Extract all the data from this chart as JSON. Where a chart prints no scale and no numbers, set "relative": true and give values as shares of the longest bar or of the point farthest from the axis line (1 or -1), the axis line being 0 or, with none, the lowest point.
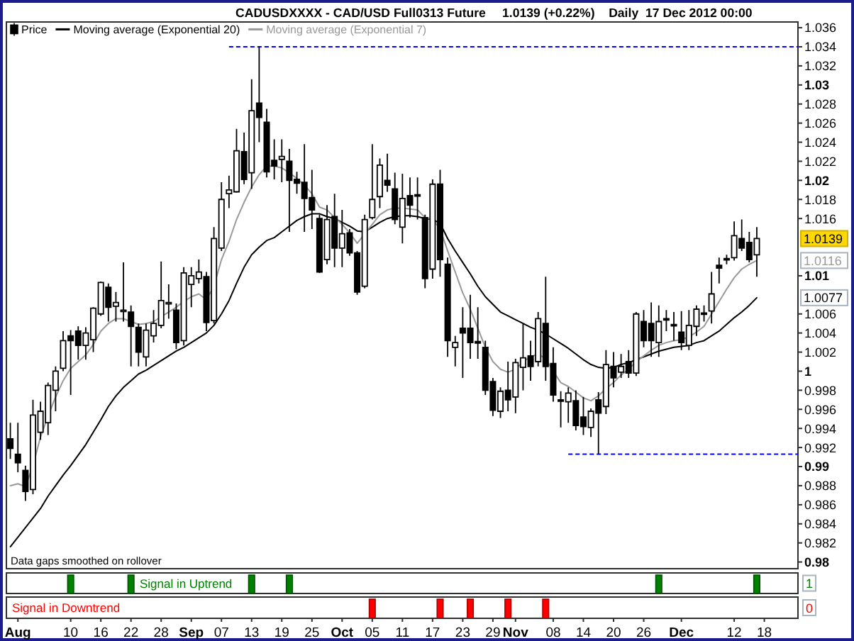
{
  "chart_data": [
    {
      "type": "candlestick",
      "title": "CADUSDXXXX - CAD/USD Full0313 Future",
      "subtitle": "1.0139 (+0.22%)    Daily  17 Dec 2012 00:00",
      "categories": [
        null,
        null,
        null,
        null,
        null,
        null,
        null,
        null,
        null,
        null,
        null,
        null,
        null,
        null,
        null,
        null,
        null,
        null,
        null,
        null,
        null,
        null,
        null,
        null,
        null,
        null,
        null,
        null,
        null,
        null,
        null,
        null,
        null,
        null,
        null,
        null,
        null,
        null,
        null,
        null,
        null,
        null,
        null,
        null,
        null,
        null,
        null,
        null,
        null,
        null,
        null,
        null,
        null,
        null,
        null,
        null,
        null,
        null,
        null,
        null,
        null,
        null,
        null,
        null,
        null,
        null,
        null,
        null,
        null,
        null,
        null,
        null,
        null,
        null,
        null,
        null,
        null,
        null,
        null,
        null,
        null,
        null,
        null,
        null,
        null,
        null,
        null,
        null,
        null,
        null,
        null,
        null,
        null,
        null,
        null,
        null,
        null,
        null,
        null,
        null,
        null
      ],
      "series": [
        {
          "name": "Price",
          "type": "candlestick",
          "color": "#000000",
          "ohlc": [
            [
              0.9929,
              0.9946,
              0.9908,
              0.9919
            ],
            [
              0.9913,
              0.9946,
              0.9894,
              0.9904
            ],
            [
              0.9896,
              0.9901,
              0.9864,
              0.9874
            ],
            [
              0.9876,
              0.997,
              0.9871,
              0.9954
            ],
            [
              0.9936,
              0.9968,
              0.9928,
              0.9958
            ],
            [
              0.9946,
              0.9988,
              0.9933,
              0.9985
            ],
            [
              0.998,
              1.0005,
              0.9958,
              1.0
            ],
            [
              1.0003,
              1.0042,
              1.0,
              1.0032
            ],
            [
              1.0037,
              1.0043,
              0.9975,
              1.0032
            ],
            [
              1.0042,
              1.0047,
              1.0012,
              1.0027
            ],
            [
              1.0027,
              1.0046,
              1.0012,
              1.004
            ],
            [
              1.0033,
              1.0067,
              1.002,
              1.0066
            ],
            [
              1.006,
              1.0094,
              1.0058,
              1.0093
            ],
            [
              1.0088,
              1.0092,
              1.0052,
              1.0067
            ],
            [
              1.0068,
              1.0083,
              1.0052,
              1.0072
            ],
            [
              1.0064,
              1.0114,
              1.0052,
              1.0064
            ],
            [
              1.0062,
              1.0069,
              1.0005,
              1.0047
            ],
            [
              1.0046,
              1.005,
              1.0005,
              1.002
            ],
            [
              1.0015,
              1.005,
              1.0005,
              1.0043
            ],
            [
              1.0037,
              1.0064,
              1.003,
              1.005
            ],
            [
              1.0048,
              1.0115,
              1.0045,
              1.0074
            ],
            [
              1.0071,
              1.0091,
              1.0055,
              1.0072
            ],
            [
              1.0064,
              1.0071,
              1.0023,
              1.003
            ],
            [
              1.0032,
              1.0109,
              1.0027,
              1.0103
            ],
            [
              1.0091,
              1.0109,
              1.0067,
              1.01
            ],
            [
              1.0097,
              1.0117,
              1.0092,
              1.0104
            ],
            [
              1.0099,
              1.0104,
              1.0042,
              1.0051
            ],
            [
              1.0053,
              1.0151,
              1.005,
              1.0139
            ],
            [
              1.0129,
              1.0198,
              1.0126,
              1.018
            ],
            [
              1.0186,
              1.0205,
              1.0171,
              1.019
            ],
            [
              1.0188,
              1.0254,
              1.0187,
              1.0231
            ],
            [
              1.023,
              1.025,
              1.0196,
              1.0201
            ],
            [
              1.0208,
              1.0306,
              1.0191,
              1.0273
            ],
            [
              1.0281,
              1.034,
              1.024,
              1.0266
            ],
            [
              1.0261,
              1.0275,
              1.0203,
              1.0209
            ],
            [
              1.0221,
              1.0243,
              1.0201,
              1.0215
            ],
            [
              1.0222,
              1.0243,
              1.0198,
              1.0225
            ],
            [
              1.022,
              1.0233,
              1.0146,
              1.02
            ],
            [
              1.0201,
              1.0209,
              1.0186,
              1.0197
            ],
            [
              1.0198,
              1.0238,
              1.0146,
              1.0181
            ],
            [
              1.0182,
              1.0211,
              1.0149,
              1.0169
            ],
            [
              1.016,
              1.0164,
              1.0103,
              1.0104
            ],
            [
              1.0117,
              1.0174,
              1.0112,
              1.0159
            ],
            [
              1.0162,
              1.0186,
              1.0109,
              1.0129
            ],
            [
              1.0129,
              1.0169,
              1.0109,
              1.0144
            ],
            [
              1.0145,
              1.0149,
              1.0121,
              1.0124
            ],
            [
              1.0124,
              1.0126,
              1.008,
              1.0083
            ],
            [
              1.0089,
              1.0164,
              1.0087,
              1.0159
            ],
            [
              1.0161,
              1.0238,
              1.0159,
              1.018
            ],
            [
              1.0183,
              1.0223,
              1.0171,
              1.0216
            ],
            [
              1.02,
              1.0228,
              1.0188,
              1.0195
            ],
            [
              1.0191,
              1.0208,
              1.0154,
              1.0159
            ],
            [
              1.0151,
              1.0207,
              1.0134,
              1.0181
            ],
            [
              1.0184,
              1.0203,
              1.0161,
              1.0174
            ],
            [
              1.0185,
              1.0203,
              1.0159,
              1.0184
            ],
            [
              1.0161,
              1.0164,
              1.0087,
              1.0097
            ],
            [
              1.0107,
              1.0201,
              1.0097,
              1.0196
            ],
            [
              1.0196,
              1.0211,
              1.0099,
              1.0117
            ],
            [
              1.0112,
              1.0119,
              1.0015,
              1.0032
            ],
            [
              1.0025,
              1.0037,
              1.0005,
              1.003
            ],
            [
              1.0045,
              1.0067,
              0.9993,
              1.004
            ],
            [
              1.0045,
              1.008,
              1.0013,
              1.003
            ],
            [
              1.0031,
              1.0067,
              1.0013,
              1.003
            ],
            [
              1.0025,
              1.0032,
              0.9975,
              0.998
            ],
            [
              0.9989,
              0.9993,
              0.9953,
              0.9959
            ],
            [
              0.9958,
              0.9983,
              0.9951,
              0.9979
            ],
            [
              0.998,
              1.001,
              0.9958,
              0.997
            ],
            [
              0.9973,
              1.0013,
              0.9956,
              1.0009
            ],
            [
              1.0004,
              1.005,
              0.998,
              1.0014
            ],
            [
              1.0016,
              1.0032,
              0.999,
              1.0005
            ],
            [
              1.001,
              1.0062,
              1.0005,
              1.0055
            ],
            [
              1.005,
              1.0099,
              0.999,
              1.0005
            ],
            [
              1.0008,
              1.0025,
              0.9968,
              0.9975
            ],
            [
              0.997,
              0.9979,
              0.9941,
              0.9969
            ],
            [
              0.9968,
              0.9983,
              0.9946,
              0.9977
            ],
            [
              0.9969,
              0.998,
              0.9938,
              0.9943
            ],
            [
              0.9952,
              0.9973,
              0.9933,
              0.9942
            ],
            [
              0.9941,
              0.9961,
              0.9931,
              0.9958
            ],
            [
              0.997,
              0.9978,
              0.9913,
              0.9956
            ],
            [
              0.9963,
              1.0022,
              0.9955,
              1.0007
            ],
            [
              1.0005,
              1.002,
              0.9983,
              0.9993
            ],
            [
              0.9999,
              1.0018,
              0.9993,
              1.0005
            ],
            [
              1.001,
              1.0022,
              0.9993,
              0.9998
            ],
            [
              0.9998,
              1.0062,
              0.9995,
              1.006
            ],
            [
              1.0052,
              1.0064,
              1.0025,
              1.0032
            ],
            [
              1.005,
              1.0072,
              1.0015,
              1.0032
            ],
            [
              1.003,
              1.0069,
              1.0015,
              1.0052
            ],
            [
              1.0055,
              1.0064,
              1.0042,
              1.0054
            ],
            [
              1.0049,
              1.0062,
              1.0032,
              1.0048
            ],
            [
              1.0041,
              1.0063,
              1.0022,
              1.003
            ],
            [
              1.0027,
              1.0064,
              1.0022,
              1.0048
            ],
            [
              1.0047,
              1.0069,
              1.0037,
              1.0065
            ],
            [
              1.0061,
              1.0069,
              1.0052,
              1.006
            ],
            [
              1.0063,
              1.0104,
              1.005,
              1.0081
            ],
            [
              1.0111,
              1.0119,
              1.0092,
              1.0108
            ],
            [
              1.0118,
              1.0122,
              1.0112,
              1.0117
            ],
            [
              1.0119,
              1.0157,
              1.0116,
              1.0142
            ],
            [
              1.0139,
              1.0159,
              1.0126,
              1.0129
            ],
            [
              1.0135,
              1.0146,
              1.0114,
              1.0117
            ],
            [
              1.0122,
              1.0151,
              1.0099,
              1.0139
            ],
            null
          ]
        },
        {
          "name": "Moving average (Exponential 20)",
          "type": "line",
          "color": "#000000",
          "values": [
            0.9816,
            0.9826,
            0.9836,
            0.9846,
            0.9856,
            0.9869,
            0.988,
            0.9891,
            0.9901,
            0.9912,
            0.9923,
            0.9936,
            0.9949,
            0.9963,
            0.9974,
            0.9983,
            0.999,
            0.9997,
            1.0001,
            1.0006,
            1.0011,
            1.0016,
            1.0021,
            1.0025,
            1.003,
            1.0035,
            1.004,
            1.0048,
            1.006,
            1.0074,
            1.0092,
            1.0109,
            1.0122,
            1.013,
            1.0137,
            1.014,
            1.0146,
            1.0152,
            1.0158,
            1.0162,
            1.0165,
            1.0165,
            1.0162,
            1.016,
            1.0156,
            1.0152,
            1.0147,
            1.0146,
            1.0151,
            1.0156,
            1.016,
            1.0162,
            1.0163,
            1.0163,
            1.0162,
            1.016,
            1.0159,
            1.0155,
            1.0139,
            1.0126,
            1.0114,
            1.0102,
            1.0089,
            1.0078,
            1.007,
            1.0062,
            1.0058,
            1.0054,
            1.005,
            1.0046,
            1.0043,
            1.0039,
            1.0034,
            1.0029,
            1.0024,
            1.0018,
            1.0012,
            1.0007,
            1.0004,
            1.0003,
            1.0004,
            1.0007,
            1.0009,
            1.0012,
            1.0015,
            1.0018,
            1.0021,
            1.0023,
            1.0025,
            1.0026,
            1.0027,
            1.003,
            1.0032,
            1.0037,
            1.0042,
            1.0049,
            1.0056,
            1.0062,
            1.0069,
            1.0077,
            null
          ]
        },
        {
          "name": "Moving average (Exponential 7)",
          "type": "line",
          "color": "#999999",
          "values": [
            0.988,
            0.9882,
            0.9879,
            0.9901,
            0.9931,
            0.9953,
            0.9973,
            0.999,
            1.0003,
            1.001,
            1.0017,
            1.0028,
            1.0042,
            1.005,
            1.0055,
            1.0055,
            1.0052,
            1.0049,
            1.005,
            1.0052,
            1.0057,
            1.0062,
            1.0067,
            1.0073,
            1.0078,
            1.0081,
            1.0075,
            1.0089,
            1.0117,
            1.0136,
            1.0159,
            1.0177,
            1.0193,
            1.0206,
            1.0215,
            1.0215,
            1.0213,
            1.0208,
            1.0202,
            1.0195,
            1.0186,
            1.0172,
            1.0169,
            1.0161,
            1.0154,
            1.0145,
            1.0134,
            1.0144,
            1.0154,
            1.0164,
            1.0169,
            1.0171,
            1.0171,
            1.017,
            1.0169,
            1.0161,
            1.0159,
            1.0149,
            1.0126,
            1.0104,
            1.0082,
            1.0065,
            1.0045,
            1.0025,
            1.001,
            1.0002,
            0.9999,
            1.0002,
            1.001,
            1.0015,
            1.0018,
            1.0013,
            1.0,
            0.9988,
            0.9984,
            0.9978,
            0.9972,
            0.9969,
            0.9974,
            0.9982,
            0.9988,
            0.9996,
            1.0002,
            1.001,
            1.0016,
            1.0022,
            1.0027,
            1.003,
            1.0032,
            1.0033,
            1.0036,
            1.0041,
            1.0047,
            1.006,
            1.0073,
            1.0086,
            1.0098,
            1.0107,
            1.0112,
            1.0116,
            null
          ]
        }
      ],
      "ylim": [
        0.9793,
        1.0366
      ],
      "yticks": [
        0.98,
        0.982,
        0.984,
        0.986,
        0.988,
        0.99,
        0.992,
        0.994,
        0.996,
        0.998,
        1,
        1.002,
        1.004,
        1.006,
        1.0077,
        1.01,
        1.0116,
        1.0139,
        1.016,
        1.018,
        1.02,
        1.022,
        1.024,
        1.026,
        1.028,
        1.03,
        1.032,
        1.034,
        1.036
      ],
      "ref_lines": [
        {
          "axis": "y",
          "value": 1.034,
          "color": "#0000ff",
          "line_style": "dashed"
        },
        {
          "axis": "y",
          "value": 0.9913,
          "color": "#0000ff",
          "line_style": "dashed"
        }
      ],
      "annotations": [
        "Data gaps smoothed on rollover"
      ],
      "legend": "top left"
    },
    {
      "type": "bar",
      "relative": true,
      "categories": [
        null,
        null,
        null,
        null,
        null,
        null,
        null,
        null,
        null,
        null,
        null,
        null,
        null,
        null,
        null,
        null,
        null,
        null,
        null,
        null,
        null,
        null,
        null,
        null,
        null,
        null,
        null,
        null,
        null,
        null,
        null,
        null,
        null,
        null,
        null,
        null,
        null,
        null,
        null,
        null,
        null,
        null,
        null,
        null,
        null,
        null,
        null,
        null,
        null,
        null,
        null,
        null,
        null,
        null,
        null,
        null,
        null,
        null,
        null,
        null,
        null,
        null,
        null,
        null,
        null,
        null,
        null,
        null,
        null,
        null,
        null,
        null,
        null,
        null,
        null,
        null,
        null,
        null,
        null,
        null,
        null,
        null,
        null,
        null,
        null,
        null,
        null,
        null,
        null,
        null,
        null,
        null,
        null,
        null,
        null,
        null,
        null,
        null,
        null,
        null,
        null
      ],
      "series": [
        {
          "name": "Signal in Uptrend",
          "color": "#008000",
          "values": [
            null,
            null,
            null,
            null,
            null,
            null,
            null,
            null,
            1,
            null,
            null,
            null,
            null,
            null,
            null,
            null,
            1,
            null,
            null,
            null,
            null,
            null,
            null,
            null,
            null,
            null,
            null,
            null,
            null,
            null,
            null,
            null,
            1,
            null,
            null,
            null,
            null,
            1,
            null,
            null,
            null,
            null,
            null,
            null,
            null,
            null,
            null,
            null,
            null,
            null,
            null,
            null,
            null,
            null,
            null,
            null,
            null,
            null,
            null,
            null,
            null,
            null,
            null,
            null,
            null,
            null,
            null,
            null,
            null,
            null,
            null,
            null,
            null,
            null,
            null,
            null,
            null,
            null,
            null,
            null,
            null,
            null,
            null,
            null,
            null,
            null,
            1,
            null,
            null,
            null,
            null,
            null,
            null,
            null,
            null,
            null,
            null,
            null,
            null,
            1,
            null
          ]
        }
      ],
      "annotations": [
        "1"
      ]
    },
    {
      "type": "bar",
      "relative": true,
      "categories": [
        null,
        "Aug",
        null,
        null,
        null,
        null,
        null,
        null,
        "10",
        null,
        null,
        null,
        "16",
        null,
        null,
        null,
        "22",
        null,
        null,
        null,
        "28",
        null,
        null,
        null,
        "Sep",
        null,
        null,
        null,
        "07",
        null,
        null,
        null,
        "13",
        null,
        null,
        null,
        "19",
        null,
        null,
        null,
        "25",
        null,
        null,
        null,
        "Oct",
        null,
        null,
        null,
        "05",
        null,
        null,
        null,
        "11",
        null,
        null,
        null,
        "17",
        null,
        null,
        null,
        "23",
        null,
        null,
        null,
        "29",
        null,
        null,
        "Nov",
        null,
        null,
        null,
        null,
        "08",
        null,
        null,
        null,
        "14",
        null,
        null,
        null,
        "20",
        null,
        null,
        null,
        "26",
        null,
        null,
        null,
        null,
        "Dec",
        null,
        null,
        null,
        null,
        null,
        null,
        "12",
        null,
        null,
        null,
        "18"
      ],
      "series": [
        {
          "name": "Signal in Downtrend",
          "color": "#ff0000",
          "values": [
            null,
            null,
            null,
            null,
            null,
            null,
            null,
            null,
            null,
            null,
            null,
            null,
            null,
            null,
            null,
            null,
            null,
            null,
            null,
            null,
            null,
            null,
            null,
            null,
            null,
            null,
            null,
            null,
            null,
            null,
            null,
            null,
            null,
            null,
            null,
            null,
            null,
            null,
            null,
            null,
            null,
            null,
            null,
            null,
            null,
            null,
            null,
            null,
            1,
            null,
            null,
            null,
            null,
            null,
            null,
            null,
            null,
            1,
            null,
            null,
            null,
            1,
            null,
            null,
            null,
            null,
            1,
            null,
            null,
            null,
            null,
            1,
            null,
            null,
            null,
            null,
            null,
            null,
            null,
            null,
            null,
            null,
            null,
            null,
            null,
            null,
            null,
            null,
            null,
            null,
            null,
            null,
            null,
            null,
            null,
            null,
            null,
            null,
            null,
            null,
            null
          ]
        }
      ],
      "annotations": [
        "0"
      ]
    }
  ]
}
